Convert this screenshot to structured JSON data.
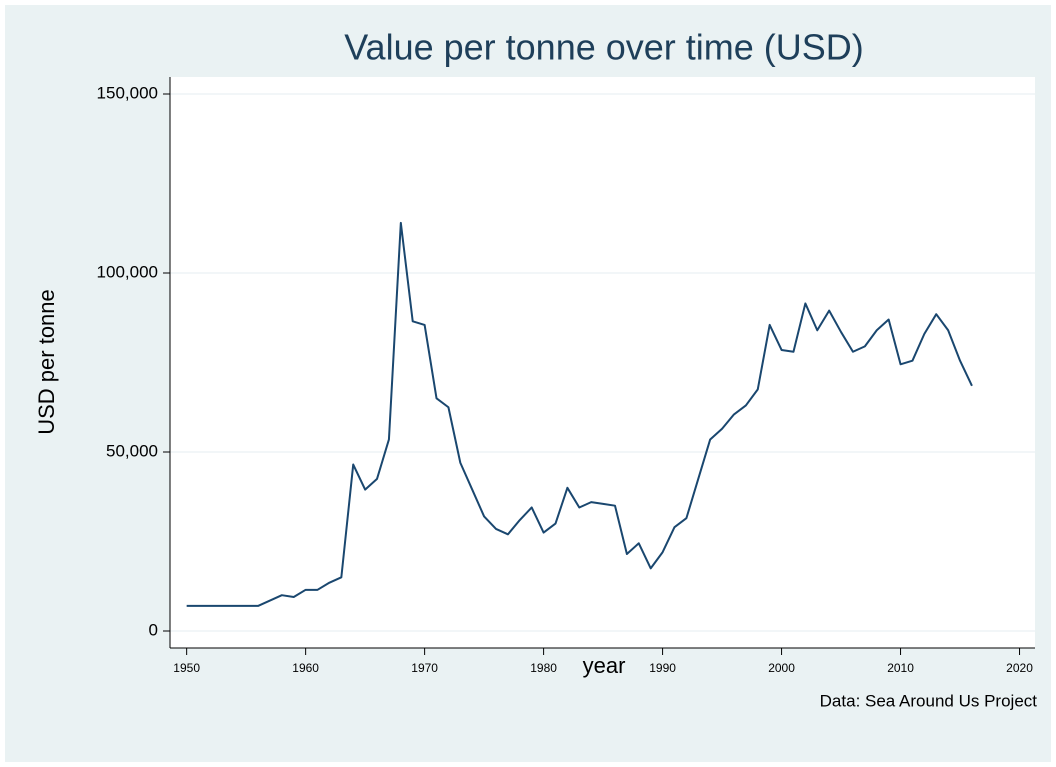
{
  "chart_data": {
    "type": "line",
    "title": "Value per tonne over time (USD)",
    "x_label": "year",
    "y_label": "USD per tonne",
    "note": "Data: Sea Around Us Project",
    "x": [
      1950,
      1951,
      1952,
      1953,
      1954,
      1955,
      1956,
      1957,
      1958,
      1959,
      1960,
      1961,
      1962,
      1963,
      1964,
      1965,
      1966,
      1967,
      1968,
      1969,
      1970,
      1971,
      1972,
      1973,
      1974,
      1975,
      1976,
      1977,
      1978,
      1979,
      1980,
      1981,
      1982,
      1983,
      1984,
      1985,
      1986,
      1987,
      1988,
      1989,
      1990,
      1991,
      1992,
      1993,
      1994,
      1995,
      1996,
      1997,
      1998,
      1999,
      2000,
      2001,
      2002,
      2003,
      2004,
      2005,
      2006,
      2007,
      2008,
      2009,
      2010,
      2011,
      2012,
      2013,
      2014,
      2015,
      2016
    ],
    "series": [
      {
        "name": "USD per tonne",
        "color": "#1a476f",
        "values": [
          7000,
          7000,
          7000,
          7000,
          7000,
          7000,
          7000,
          8500,
          10000,
          9500,
          11500,
          11500,
          13500,
          15000,
          46500,
          39500,
          42500,
          53500,
          114000,
          86500,
          85500,
          65000,
          62500,
          47000,
          39500,
          32000,
          28500,
          27000,
          31000,
          34500,
          27500,
          30000,
          40000,
          34500,
          36000,
          35500,
          35000,
          21500,
          24500,
          17500,
          22000,
          29000,
          31500,
          42500,
          53500,
          56500,
          60500,
          63000,
          67500,
          85500,
          78500,
          78000,
          91500,
          84000,
          89500,
          83500,
          78000,
          79500,
          84000,
          87000,
          74500,
          75500,
          83000,
          88500,
          84000,
          75500,
          68500
        ]
      }
    ],
    "xlim": [
      1948.6,
      2021.3
    ],
    "ylim": [
      -4750,
      154750
    ],
    "xticks": [
      1950,
      1960,
      1970,
      1980,
      1990,
      2000,
      2010,
      2020
    ],
    "yticks": [
      0,
      {
        "value": 50000,
        "label": "50,000"
      },
      {
        "value": 100000,
        "label": "100,000"
      },
      {
        "value": 150000,
        "label": "150,000"
      }
    ],
    "grid": true
  }
}
